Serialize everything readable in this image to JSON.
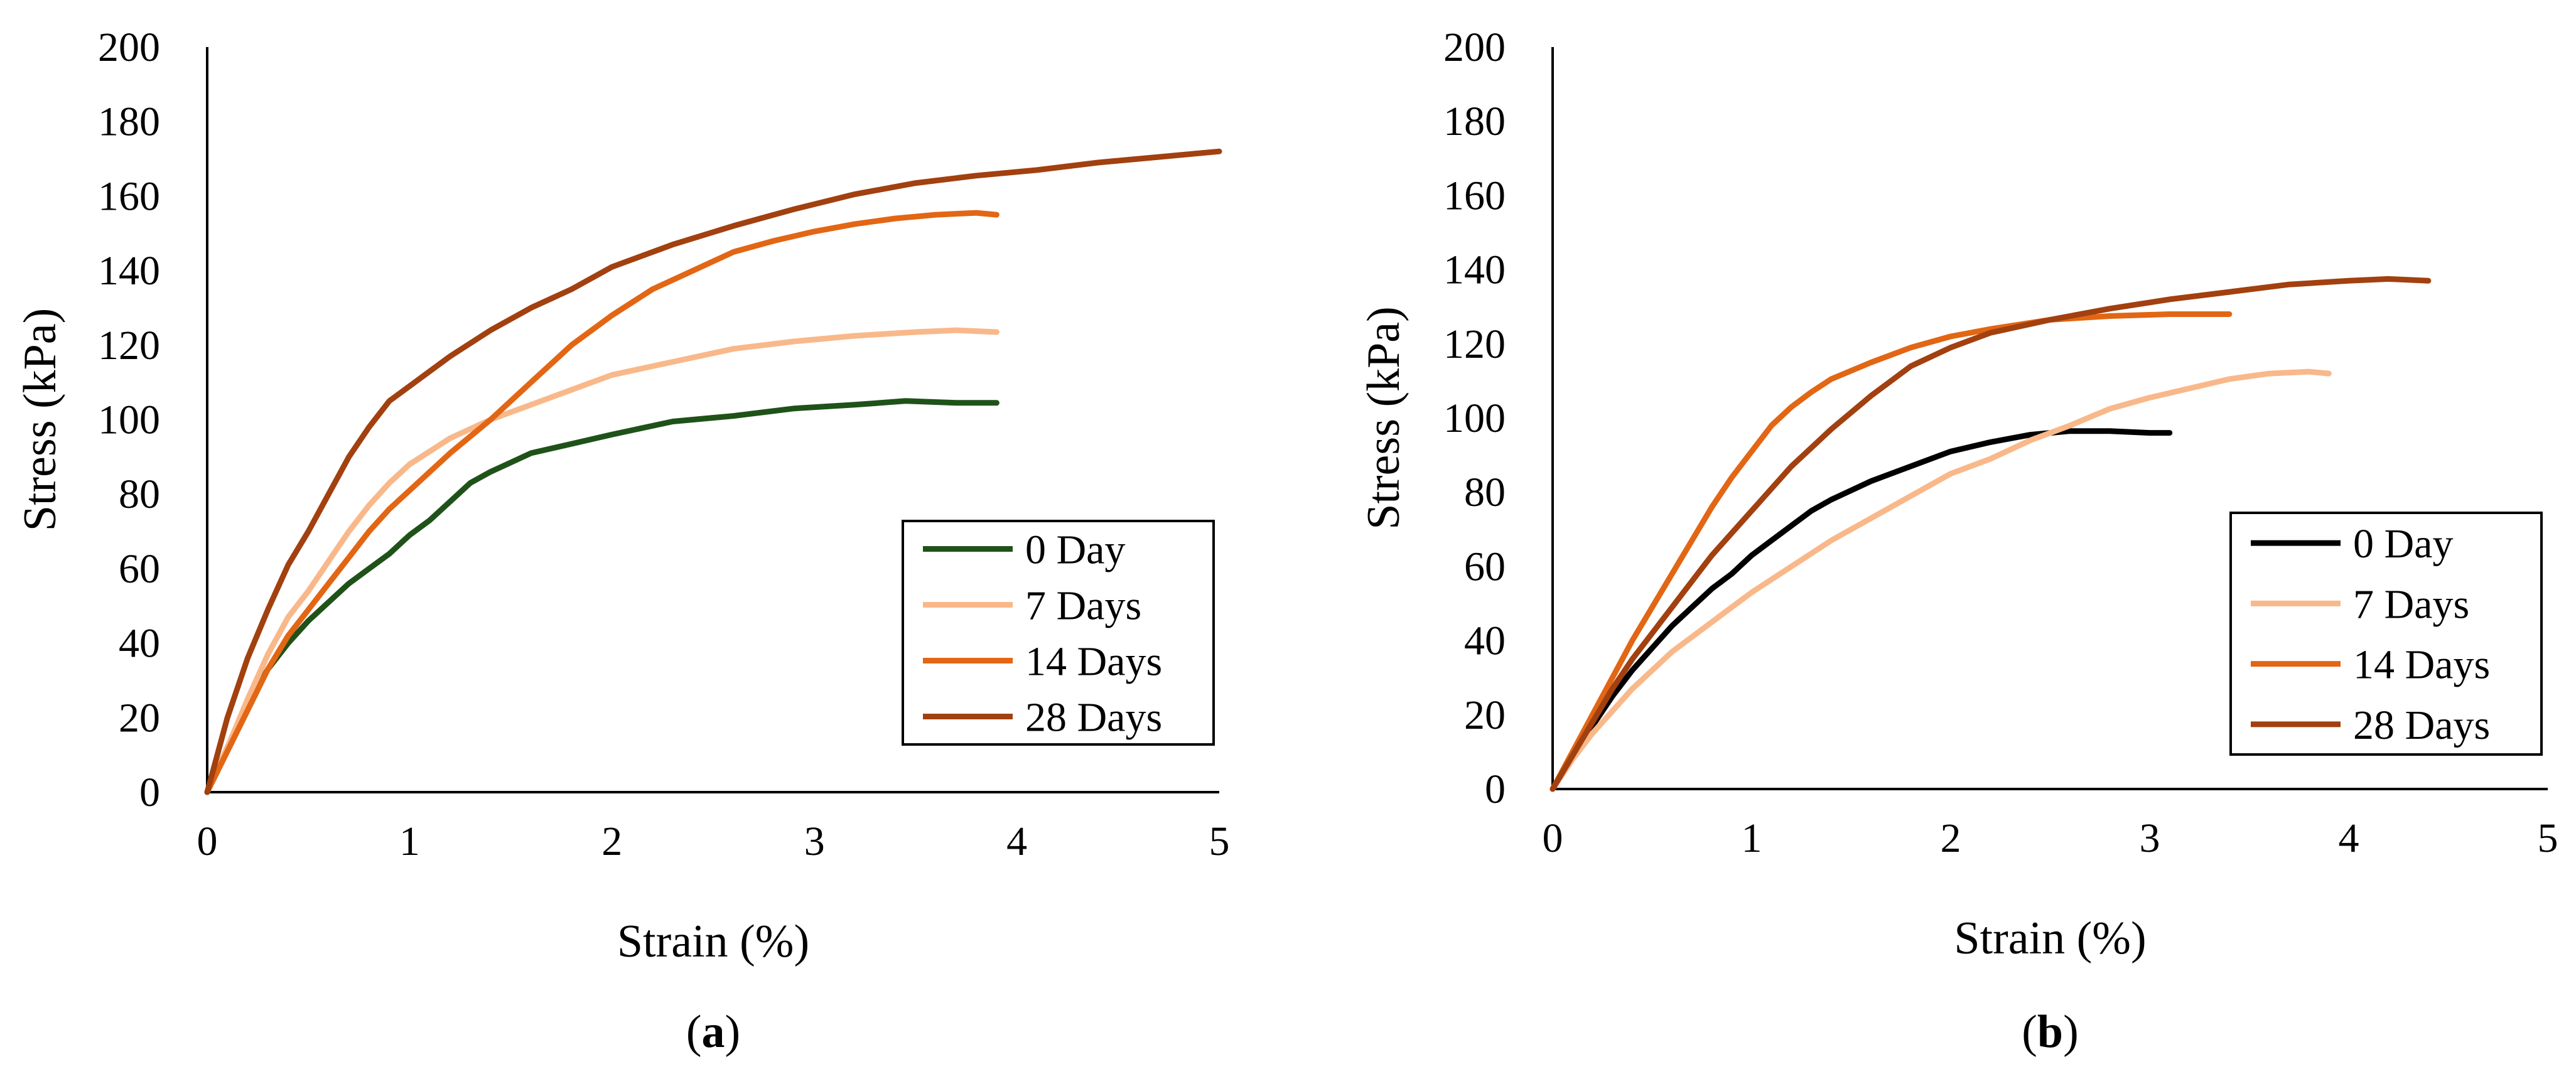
{
  "chart_data": [
    {
      "type": "line",
      "panel_label": "a",
      "xlabel": "Strain (%)",
      "ylabel": "Stress (kPa)",
      "xlim": [
        0,
        5
      ],
      "ylim": [
        0,
        200
      ],
      "xticks": [
        0,
        1,
        2,
        3,
        4,
        5
      ],
      "yticks": [
        0,
        20,
        40,
        60,
        80,
        100,
        120,
        140,
        160,
        180,
        200
      ],
      "grid": false,
      "legend_position": "bottom-right",
      "series": [
        {
          "name": "0 Day",
          "color": "#1f5219",
          "x": [
            0,
            0.1,
            0.2,
            0.3,
            0.4,
            0.5,
            0.6,
            0.7,
            0.8,
            0.9,
            1.0,
            1.1,
            1.2,
            1.3,
            1.4,
            1.5,
            1.6,
            1.8,
            2.0,
            2.3,
            2.6,
            2.9,
            3.2,
            3.45,
            3.7,
            3.9
          ],
          "y": [
            0,
            12,
            24,
            33,
            40,
            46,
            51,
            56,
            60,
            64,
            69,
            73,
            78,
            83,
            86,
            88.5,
            91,
            93.5,
            96,
            99.5,
            101,
            103,
            104,
            105,
            104.5,
            104.5
          ]
        },
        {
          "name": "7 Days",
          "color": "#f9b88a",
          "x": [
            0,
            0.1,
            0.2,
            0.3,
            0.4,
            0.5,
            0.6,
            0.7,
            0.8,
            0.9,
            1.0,
            1.2,
            1.4,
            1.6,
            1.8,
            2.0,
            2.3,
            2.6,
            2.9,
            3.2,
            3.5,
            3.7,
            3.9
          ],
          "y": [
            0,
            12,
            25,
            37,
            47,
            54,
            62,
            70,
            77,
            83,
            88,
            95,
            100,
            104,
            108,
            112,
            115.5,
            119,
            121,
            122.5,
            123.5,
            124,
            123.5
          ]
        },
        {
          "name": "14 Days",
          "color": "#e26614",
          "x": [
            0,
            0.1,
            0.2,
            0.3,
            0.4,
            0.5,
            0.6,
            0.7,
            0.8,
            0.9,
            1.0,
            1.2,
            1.4,
            1.6,
            1.8,
            2.0,
            2.2,
            2.4,
            2.6,
            2.8,
            3.0,
            3.2,
            3.4,
            3.6,
            3.8,
            3.9
          ],
          "y": [
            0,
            11,
            22,
            33,
            42,
            49,
            56,
            63,
            70,
            76,
            81,
            91,
            100,
            110,
            120,
            128,
            135,
            140,
            145,
            148,
            150.5,
            152.5,
            154,
            155,
            155.5,
            155
          ]
        },
        {
          "name": "28 Days",
          "color": "#a2400f",
          "x": [
            0,
            0.1,
            0.2,
            0.3,
            0.4,
            0.5,
            0.6,
            0.7,
            0.8,
            0.9,
            1.0,
            1.2,
            1.4,
            1.6,
            1.8,
            2.0,
            2.3,
            2.6,
            2.9,
            3.2,
            3.5,
            3.8,
            4.1,
            4.4,
            4.7,
            5.0
          ],
          "y": [
            0,
            20,
            36,
            49,
            61,
            70,
            80,
            90,
            98,
            105,
            109,
            117,
            124,
            130,
            135,
            141,
            147,
            152,
            156.5,
            160.5,
            163.5,
            165.5,
            167,
            169,
            170.5,
            172
          ]
        }
      ]
    },
    {
      "type": "line",
      "panel_label": "b",
      "xlabel": "Strain (%)",
      "ylabel": "Stress (kPa)",
      "xlim": [
        0,
        5
      ],
      "ylim": [
        0,
        200
      ],
      "xticks": [
        0,
        1,
        2,
        3,
        4,
        5
      ],
      "yticks": [
        0,
        20,
        40,
        60,
        80,
        100,
        120,
        140,
        160,
        180,
        200
      ],
      "grid": false,
      "legend_position": "bottom-right",
      "series": [
        {
          "name": "0 Day",
          "color": "#000000",
          "x": [
            0,
            0.1,
            0.2,
            0.3,
            0.4,
            0.5,
            0.6,
            0.7,
            0.8,
            0.9,
            1.0,
            1.1,
            1.2,
            1.3,
            1.4,
            1.6,
            1.8,
            2.0,
            2.2,
            2.4,
            2.6,
            2.8,
            3.0,
            3.1
          ],
          "y": [
            0,
            9,
            17,
            25,
            32,
            38,
            44,
            49,
            54,
            58,
            63,
            67,
            71,
            75,
            78,
            83,
            87,
            91,
            93.5,
            95.5,
            96.5,
            96.5,
            96,
            96
          ]
        },
        {
          "name": "7 Days",
          "color": "#f9b88a",
          "x": [
            0,
            0.1,
            0.2,
            0.3,
            0.4,
            0.5,
            0.6,
            0.7,
            0.8,
            0.9,
            1.0,
            1.2,
            1.4,
            1.6,
            1.8,
            2.0,
            2.2,
            2.4,
            2.6,
            2.8,
            3.0,
            3.2,
            3.4,
            3.6,
            3.8,
            3.9
          ],
          "y": [
            0,
            8,
            15,
            21,
            27,
            32,
            37,
            41,
            45,
            49,
            53,
            60,
            67,
            73,
            79,
            85,
            89,
            94,
            98,
            102.5,
            105.5,
            108,
            110.5,
            112,
            112.5,
            112
          ]
        },
        {
          "name": "14 Days",
          "color": "#e26614",
          "x": [
            0,
            0.1,
            0.2,
            0.3,
            0.4,
            0.5,
            0.6,
            0.7,
            0.8,
            0.9,
            1.0,
            1.1,
            1.2,
            1.3,
            1.4,
            1.6,
            1.8,
            2.0,
            2.2,
            2.5,
            2.8,
            3.1,
            3.4
          ],
          "y": [
            0,
            10,
            20,
            30,
            40,
            49,
            58,
            67,
            76,
            84,
            91,
            98,
            103,
            107,
            110.5,
            115,
            119,
            122,
            124,
            126.5,
            127.5,
            128,
            128
          ]
        },
        {
          "name": "28 Days",
          "color": "#a2400f",
          "x": [
            0,
            0.1,
            0.2,
            0.3,
            0.4,
            0.5,
            0.6,
            0.7,
            0.8,
            0.9,
            1.0,
            1.1,
            1.2,
            1.3,
            1.4,
            1.6,
            1.8,
            2.0,
            2.2,
            2.5,
            2.8,
            3.1,
            3.4,
            3.7,
            4.0,
            4.2,
            4.4
          ],
          "y": [
            0,
            9,
            18,
            27,
            35,
            42,
            49,
            56,
            63,
            69,
            75,
            81,
            87,
            92,
            97,
            106,
            114,
            119,
            123,
            126.5,
            129.5,
            132,
            134,
            136,
            137,
            137.5,
            137
          ]
        }
      ]
    }
  ]
}
